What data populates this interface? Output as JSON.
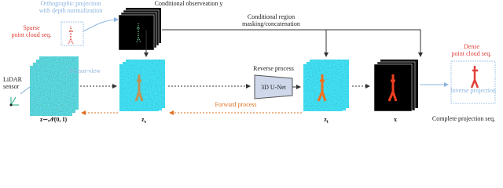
{
  "ortho": [
    "Orthographic projection",
    "with depth normalization"
  ],
  "sparse": [
    "Sparse",
    "point cloud seq."
  ],
  "cond_obs": "Conditional observeation y",
  "cond_region": [
    "Conditional region",
    "masking/concatenation"
  ],
  "dense": [
    "Dense",
    "point cloud seq."
  ],
  "sensor_view": "Sensor-view",
  "lidar": [
    "LiDAR",
    "sensor"
  ],
  "reverse": "Reverse process",
  "unet": "3D U-Net",
  "forward": "Forward process",
  "inverse": "Inverse projection",
  "noise_label": "z∼𝒩(0, I)",
  "zs_label": {
    "base": "z",
    "sub": "s"
  },
  "zt_label": {
    "base": "z",
    "sub": "t"
  },
  "x_label": "x",
  "complete": "Complete projection seq."
}
